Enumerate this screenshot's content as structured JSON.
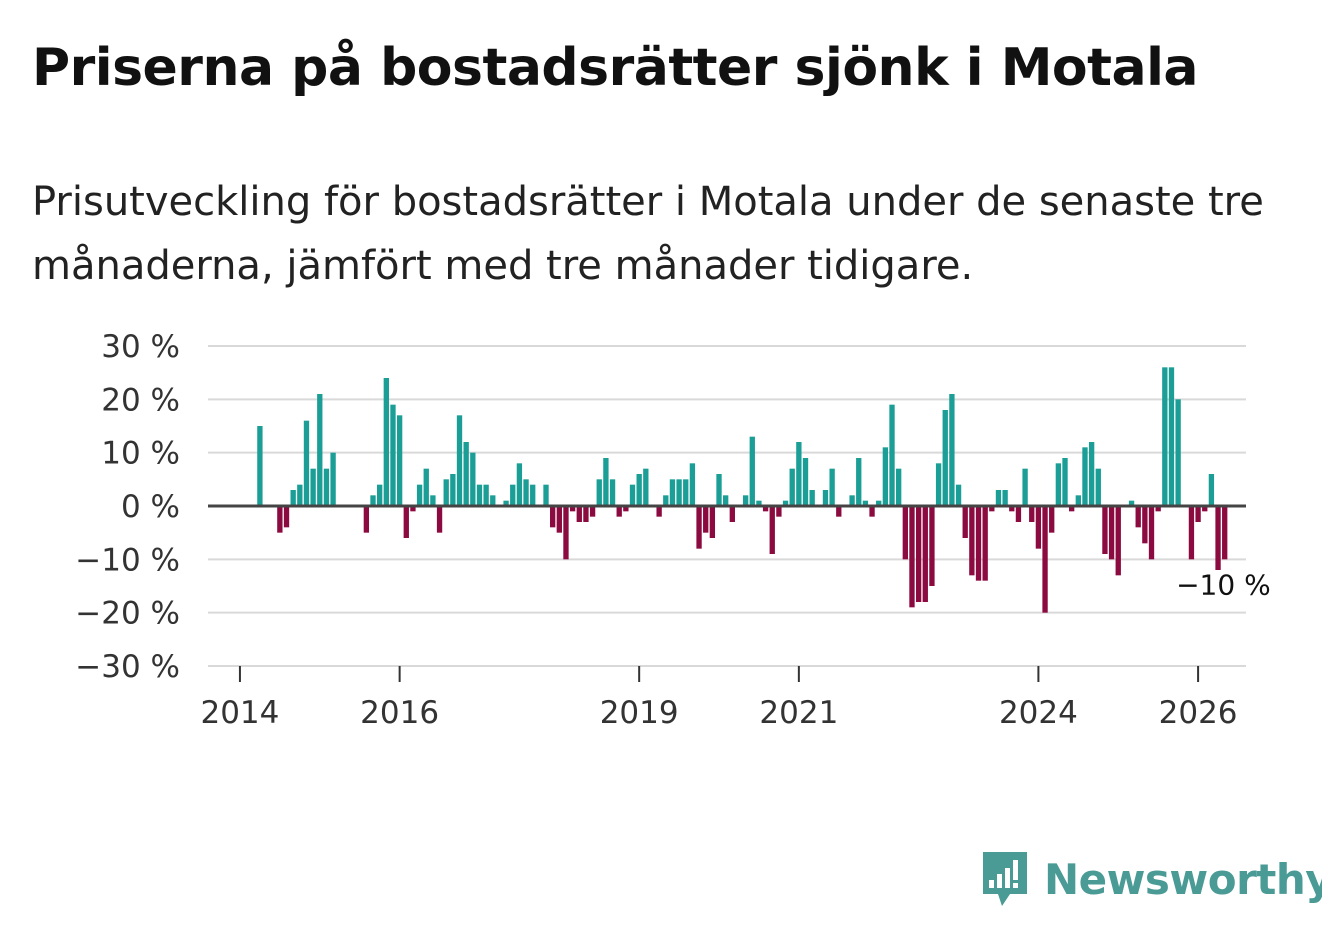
{
  "header": {
    "title": "Priserna på bostadsrätter sjönk i Motala",
    "subtitle": "Prisutveckling för bostadsrätter i Motala under de senaste tre månaderna, jämfört med tre månader tidigare."
  },
  "brand": {
    "name": "Newsworthy",
    "icon": "newsworthy-logo-icon",
    "color": "#4a9a95"
  },
  "colors": {
    "positive": "#1a9e96",
    "negative": "#8b0a3f",
    "grid": "#d9d9d9",
    "zero": "#444444"
  },
  "chart_data": {
    "type": "bar",
    "title": "Priserna på bostadsrätter sjönk i Motala",
    "ylabel": "",
    "xlabel": "",
    "ylim": [
      -30,
      30
    ],
    "xlim": [
      2013.6,
      2026.6
    ],
    "y_ticks": [
      30,
      20,
      10,
      0,
      -10,
      -20,
      -30
    ],
    "y_tick_labels": [
      "30 %",
      "20 %",
      "10 %",
      "0 %",
      "−10 %",
      "−20 %",
      "−30 %"
    ],
    "x_ticks": [
      2014,
      2016,
      2019,
      2021,
      2024,
      2026
    ],
    "x_tick_labels": [
      "2014",
      "2016",
      "2019",
      "2021",
      "2024",
      "2026"
    ],
    "start_year": 2014.25,
    "step_years": 0.0833333,
    "values": [
      15,
      0,
      0,
      -5,
      -4,
      3,
      4,
      16,
      7,
      21,
      7,
      10,
      0,
      0,
      0,
      0,
      -5,
      2,
      4,
      24,
      19,
      17,
      -6,
      -1,
      4,
      7,
      2,
      -5,
      5,
      6,
      17,
      12,
      10,
      4,
      4,
      2,
      0,
      1,
      4,
      8,
      5,
      4,
      0,
      4,
      -4,
      -5,
      -10,
      -1,
      -3,
      -3,
      -2,
      5,
      9,
      5,
      -2,
      -1,
      4,
      6,
      7,
      0,
      -2,
      2,
      5,
      5,
      5,
      8,
      -8,
      -5,
      -6,
      6,
      2,
      -3,
      0,
      2,
      13,
      1,
      -1,
      -9,
      -2,
      1,
      7,
      12,
      9,
      3,
      0,
      3,
      7,
      -2,
      0,
      2,
      9,
      1,
      -2,
      1,
      11,
      19,
      7,
      -10,
      -19,
      -18,
      -18,
      -15,
      8,
      18,
      21,
      4,
      -6,
      -13,
      -14,
      -14,
      -1,
      3,
      3,
      -1,
      -3,
      7,
      -3,
      -8,
      -20,
      -5,
      8,
      9,
      -1,
      2,
      11,
      12,
      7,
      -9,
      -10,
      -13,
      0,
      1,
      -4,
      -7,
      -10,
      -1,
      26,
      26,
      20,
      0,
      -10,
      -3,
      -1,
      6,
      -12,
      -10
    ],
    "annotation": {
      "label": "−10 %",
      "value": -10,
      "position": "last-bar"
    }
  }
}
